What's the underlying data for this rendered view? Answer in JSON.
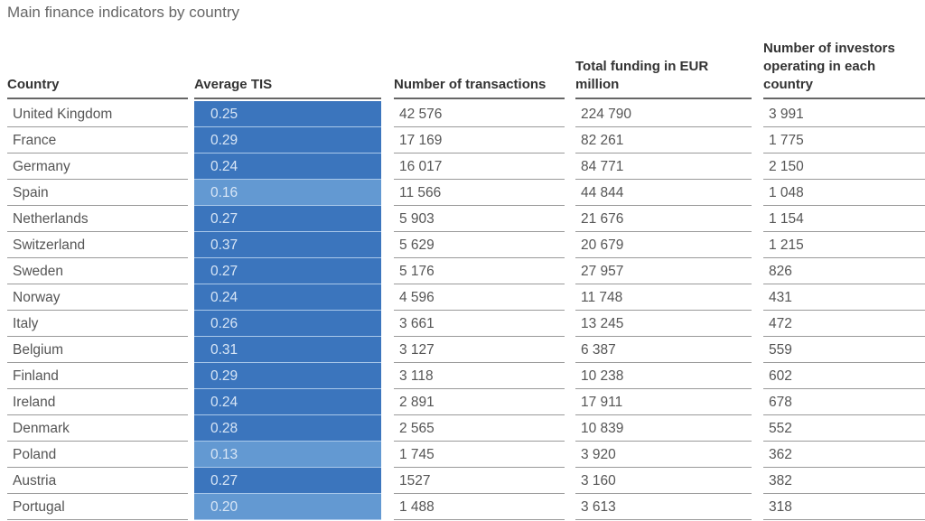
{
  "chart_data": {
    "type": "table",
    "title": "Main finance indicators by country",
    "columns": [
      "Country",
      "Average TIS",
      "Number of transactions",
      "Total funding in EUR million",
      "Number of investors operating in each country"
    ],
    "rows": [
      [
        "United Kingdom",
        "0.25",
        "42 576",
        "224 790",
        "3 991"
      ],
      [
        "France",
        "0.29",
        "17 169",
        "82 261",
        "1 775"
      ],
      [
        "Germany",
        "0.24",
        "16 017",
        "84 771",
        "2 150"
      ],
      [
        "Spain",
        "0.16",
        "11 566",
        "44 844",
        "1 048"
      ],
      [
        "Netherlands",
        "0.27",
        "5 903",
        "21 676",
        "1 154"
      ],
      [
        "Switzerland",
        "0.37",
        "5 629",
        "20 679",
        "1 215"
      ],
      [
        "Sweden",
        "0.27",
        "5 176",
        "27 957",
        "826"
      ],
      [
        "Norway",
        "0.24",
        "4 596",
        "11 748",
        "431"
      ],
      [
        "Italy",
        "0.26",
        "3 661",
        "13 245",
        "472"
      ],
      [
        "Belgium",
        "0.31",
        "3 127",
        "6 387",
        "559"
      ],
      [
        "Finland",
        "0.29",
        "3 118",
        "10 238",
        "602"
      ],
      [
        "Ireland",
        "0.24",
        "2 891",
        "17 911",
        "678"
      ],
      [
        "Denmark",
        "0.28",
        "2 565",
        "10 839",
        "552"
      ],
      [
        "Poland",
        "0.13",
        "1 745",
        "3 920",
        "362"
      ],
      [
        "Austria",
        "0.27",
        "1527",
        "3 160",
        "382"
      ],
      [
        "Portugal",
        "0.20",
        "1 488",
        "3 613",
        "318"
      ]
    ],
    "tis_colors": {
      "high": "#3b75bd",
      "low": "#6399d2"
    },
    "tis_low_threshold": 0.2
  }
}
